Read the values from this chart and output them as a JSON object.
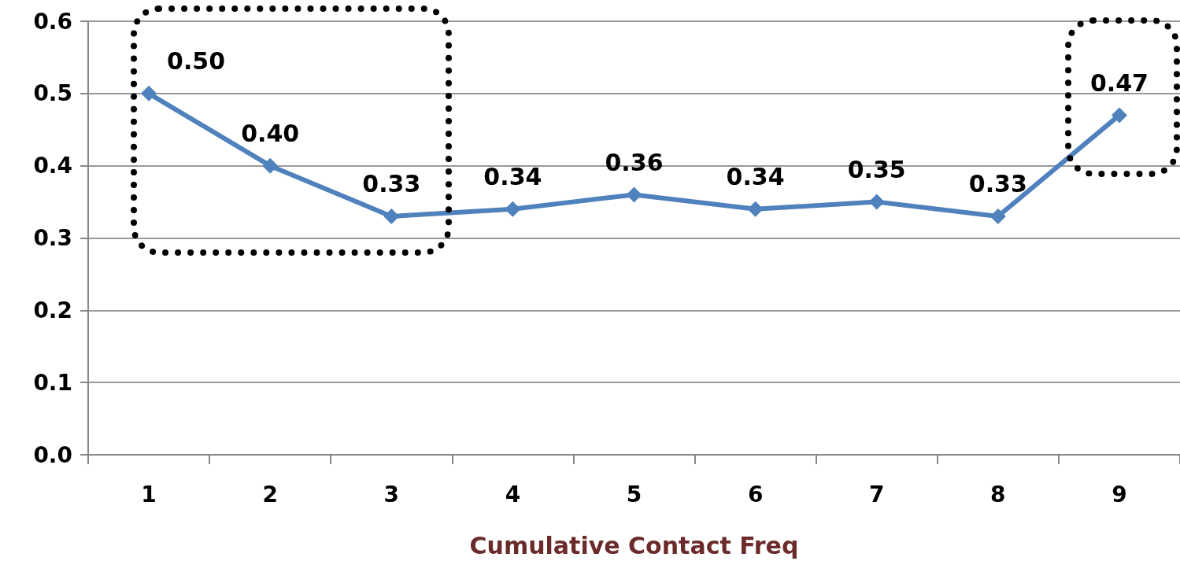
{
  "chart_data": {
    "type": "line",
    "xlabel": "Cumulative Contact Freq",
    "categories": [
      "1",
      "2",
      "3",
      "4",
      "5",
      "6",
      "7",
      "8",
      "9"
    ],
    "series": [
      {
        "color": "#4f81bd",
        "values": [
          0.5,
          0.4,
          0.33,
          0.34,
          0.36,
          0.34,
          0.35,
          0.33,
          0.47
        ],
        "value_labels": [
          "0.50",
          "0.40",
          "0.33",
          "0.34",
          "0.36",
          "0.34",
          "0.35",
          "0.33",
          "0.47"
        ]
      }
    ],
    "ylim": [
      0,
      0.6
    ],
    "yticks": [
      {
        "value": 0,
        "label": "0.0"
      },
      {
        "value": 0.1,
        "label": "0.1"
      },
      {
        "value": 0.2,
        "label": "0.2"
      },
      {
        "value": 0.3,
        "label": "0.3"
      },
      {
        "value": 0.4,
        "label": "0.4"
      },
      {
        "value": 0.5,
        "label": "0.5"
      },
      {
        "value": 0.6,
        "label": "0.6"
      }
    ],
    "grid": "y",
    "marker": "diamond",
    "line_style": "solid"
  }
}
